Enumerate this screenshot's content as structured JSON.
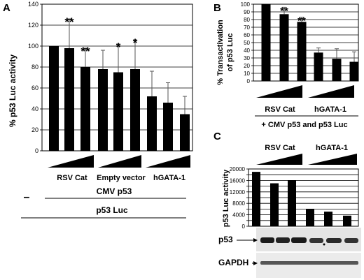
{
  "panels": {
    "A": {
      "letter": "A",
      "chart_data": {
        "type": "bar",
        "ylabel": "% p53 Luc activity",
        "ylim": [
          0,
          140
        ],
        "yticks": [
          0,
          20,
          40,
          60,
          80,
          100,
          120,
          140
        ],
        "grid": true,
        "series": [
          {
            "values": [
              100,
              98,
              80,
              78,
              75,
              78,
              52,
              46,
              35
            ],
            "errors": [
              0,
              28,
              18,
              18,
              27,
              28,
              24,
              19,
              17
            ],
            "significance": [
              "",
              "**",
              "**",
              "",
              "*",
              "*",
              "",
              "",
              ""
            ]
          }
        ]
      },
      "group_labels": [
        "RSV Cat",
        "Empty vector",
        "hGATA-1"
      ],
      "minus_label": "–",
      "cmv_label": "CMV p53",
      "luc_label": "p53 Luc"
    },
    "B": {
      "letter": "B",
      "chart_data": {
        "type": "bar",
        "ylabel_line1": "% Transactivation",
        "ylabel_line2": "of p53 Luc",
        "ylim": [
          0,
          100
        ],
        "yticks": [
          0,
          10,
          20,
          30,
          40,
          50,
          60,
          70,
          80,
          90,
          100
        ],
        "grid": true,
        "series": [
          {
            "values": [
              100,
              87,
              77,
              37,
              29,
              25
            ],
            "errors": [
              0,
              9,
              6,
              6,
              13,
              13
            ],
            "significance": [
              "",
              "**",
              "**",
              "",
              "",
              ""
            ]
          }
        ]
      },
      "group_labels": [
        "RSV Cat",
        "hGATA-1"
      ],
      "bottom_label": "+ CMV p53 and p53 Luc"
    },
    "C": {
      "letter": "C",
      "chart_data": {
        "type": "bar",
        "ylabel": "p53 Luc activity",
        "ylim": [
          0,
          20000
        ],
        "yticks": [
          0,
          2000,
          4000,
          6000,
          8000,
          10000,
          12000,
          14000,
          16000,
          18000,
          20000
        ],
        "tick_labels": [
          "0",
          "4000",
          "8000",
          "12000",
          "16000",
          "20000"
        ],
        "grid": true,
        "series": [
          {
            "values": [
              19000,
              15000,
              16000,
              6100,
              5100,
              3700
            ]
          }
        ]
      },
      "group_labels": [
        "RSV Cat",
        "hGATA-1"
      ],
      "blot_labels": [
        "p53",
        "GAPDH"
      ]
    }
  }
}
